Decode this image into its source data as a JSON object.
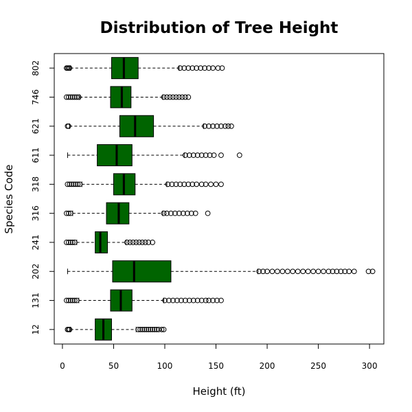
{
  "chart_data": {
    "type": "boxplot",
    "orientation": "horizontal",
    "title": "Distribution of Tree Height",
    "xlabel": "Height (ft)",
    "ylabel": "Species Code",
    "xlim": [
      -8,
      314
    ],
    "x_ticks": [
      0,
      50,
      100,
      150,
      200,
      250,
      300
    ],
    "box_color": "#006400",
    "outline_color": "#000000",
    "categories": [
      "12",
      "131",
      "202",
      "241",
      "316",
      "318",
      "611",
      "621",
      "746",
      "802"
    ],
    "boxes": [
      {
        "category": "12",
        "whisker_low": 8,
        "q1": 32,
        "median": 40,
        "q3": 48,
        "whisker_high": 72,
        "outliers": [
          5,
          6,
          7,
          74,
          76,
          78,
          80,
          82,
          84,
          86,
          88,
          90,
          92,
          94,
          97,
          99
        ]
      },
      {
        "category": "131",
        "whisker_low": 16,
        "q1": 47,
        "median": 57,
        "q3": 68,
        "whisker_high": 99,
        "outliers": [
          4,
          6,
          8,
          10,
          12,
          14,
          100,
          104,
          108,
          112,
          116,
          120,
          124,
          128,
          132,
          136,
          140,
          143,
          147,
          151,
          155
        ]
      },
      {
        "category": "202",
        "whisker_low": 5,
        "q1": 49,
        "median": 70,
        "q3": 106,
        "whisker_high": 191,
        "outliers": [
          192,
          196,
          200,
          205,
          210,
          215,
          220,
          225,
          230,
          235,
          240,
          245,
          250,
          255,
          260,
          264,
          268,
          272,
          276,
          280,
          285,
          299,
          303
        ]
      },
      {
        "category": "241",
        "whisker_low": 14,
        "q1": 32,
        "median": 37,
        "q3": 44,
        "whisker_high": 62,
        "outliers": [
          4,
          6,
          8,
          10,
          12,
          63,
          66,
          69,
          72,
          75,
          78,
          81,
          84,
          88
        ]
      },
      {
        "category": "316",
        "whisker_low": 10,
        "q1": 43,
        "median": 55,
        "q3": 65,
        "whisker_high": 98,
        "outliers": [
          4,
          6,
          8,
          99,
          102,
          106,
          110,
          114,
          118,
          122,
          126,
          130,
          142
        ]
      },
      {
        "category": "318",
        "whisker_low": 19,
        "q1": 50,
        "median": 60,
        "q3": 71,
        "whisker_high": 102,
        "outliers": [
          5,
          7,
          9,
          11,
          13,
          15,
          17,
          103,
          107,
          111,
          115,
          119,
          123,
          127,
          131,
          136,
          140,
          145,
          150,
          155
        ]
      },
      {
        "category": "611",
        "whisker_low": 5,
        "q1": 34,
        "median": 53,
        "q3": 68,
        "whisker_high": 119,
        "outliers": [
          120,
          124,
          128,
          132,
          136,
          140,
          144,
          148,
          155,
          173
        ]
      },
      {
        "category": "621",
        "whisker_low": 7,
        "q1": 56,
        "median": 71,
        "q3": 89,
        "whisker_high": 138,
        "outliers": [
          5,
          6,
          139,
          143,
          147,
          151,
          155,
          159,
          162,
          165
        ]
      },
      {
        "category": "746",
        "whisker_low": 17,
        "q1": 47,
        "median": 58,
        "q3": 67,
        "whisker_high": 98,
        "outliers": [
          4,
          6,
          8,
          10,
          12,
          14,
          16,
          99,
          102,
          105,
          108,
          111,
          114,
          117,
          120,
          123
        ]
      },
      {
        "category": "802",
        "whisker_low": 8,
        "q1": 48,
        "median": 60,
        "q3": 74,
        "whisker_high": 114,
        "outliers": [
          4,
          5,
          6,
          7,
          115,
          119,
          123,
          127,
          131,
          135,
          139,
          143,
          147,
          152,
          156
        ]
      }
    ]
  }
}
